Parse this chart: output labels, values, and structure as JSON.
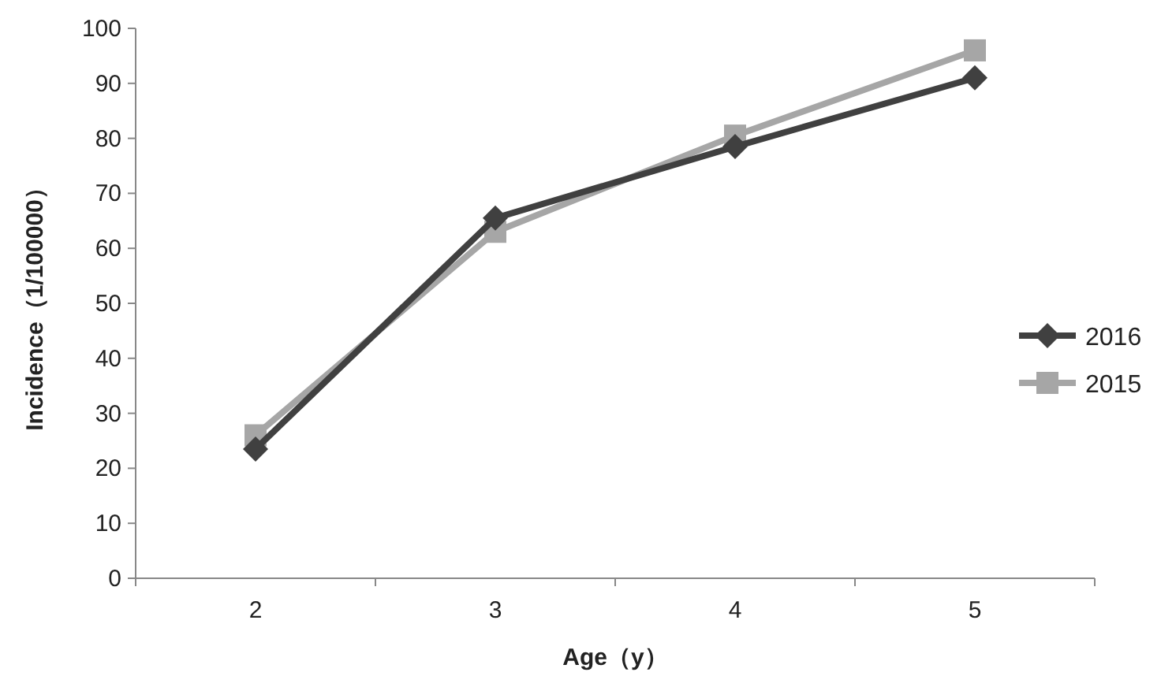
{
  "chart_data": {
    "type": "line",
    "xlabel": "Age（y）",
    "ylabel": "Incidence（1/100000）",
    "categories": [
      "2",
      "3",
      "4",
      "5"
    ],
    "series": [
      {
        "name": "2016",
        "color": "#404040",
        "marker": "diamond",
        "values": [
          23.5,
          65.5,
          78.5,
          91
        ]
      },
      {
        "name": "2015",
        "color": "#a6a6a6",
        "marker": "square",
        "values": [
          26,
          63,
          80.5,
          96
        ]
      }
    ],
    "ylim": [
      0,
      100
    ],
    "yticks": [
      0,
      10,
      20,
      30,
      40,
      50,
      60,
      70,
      80,
      90,
      100
    ],
    "legend": "right",
    "grid": false
  }
}
